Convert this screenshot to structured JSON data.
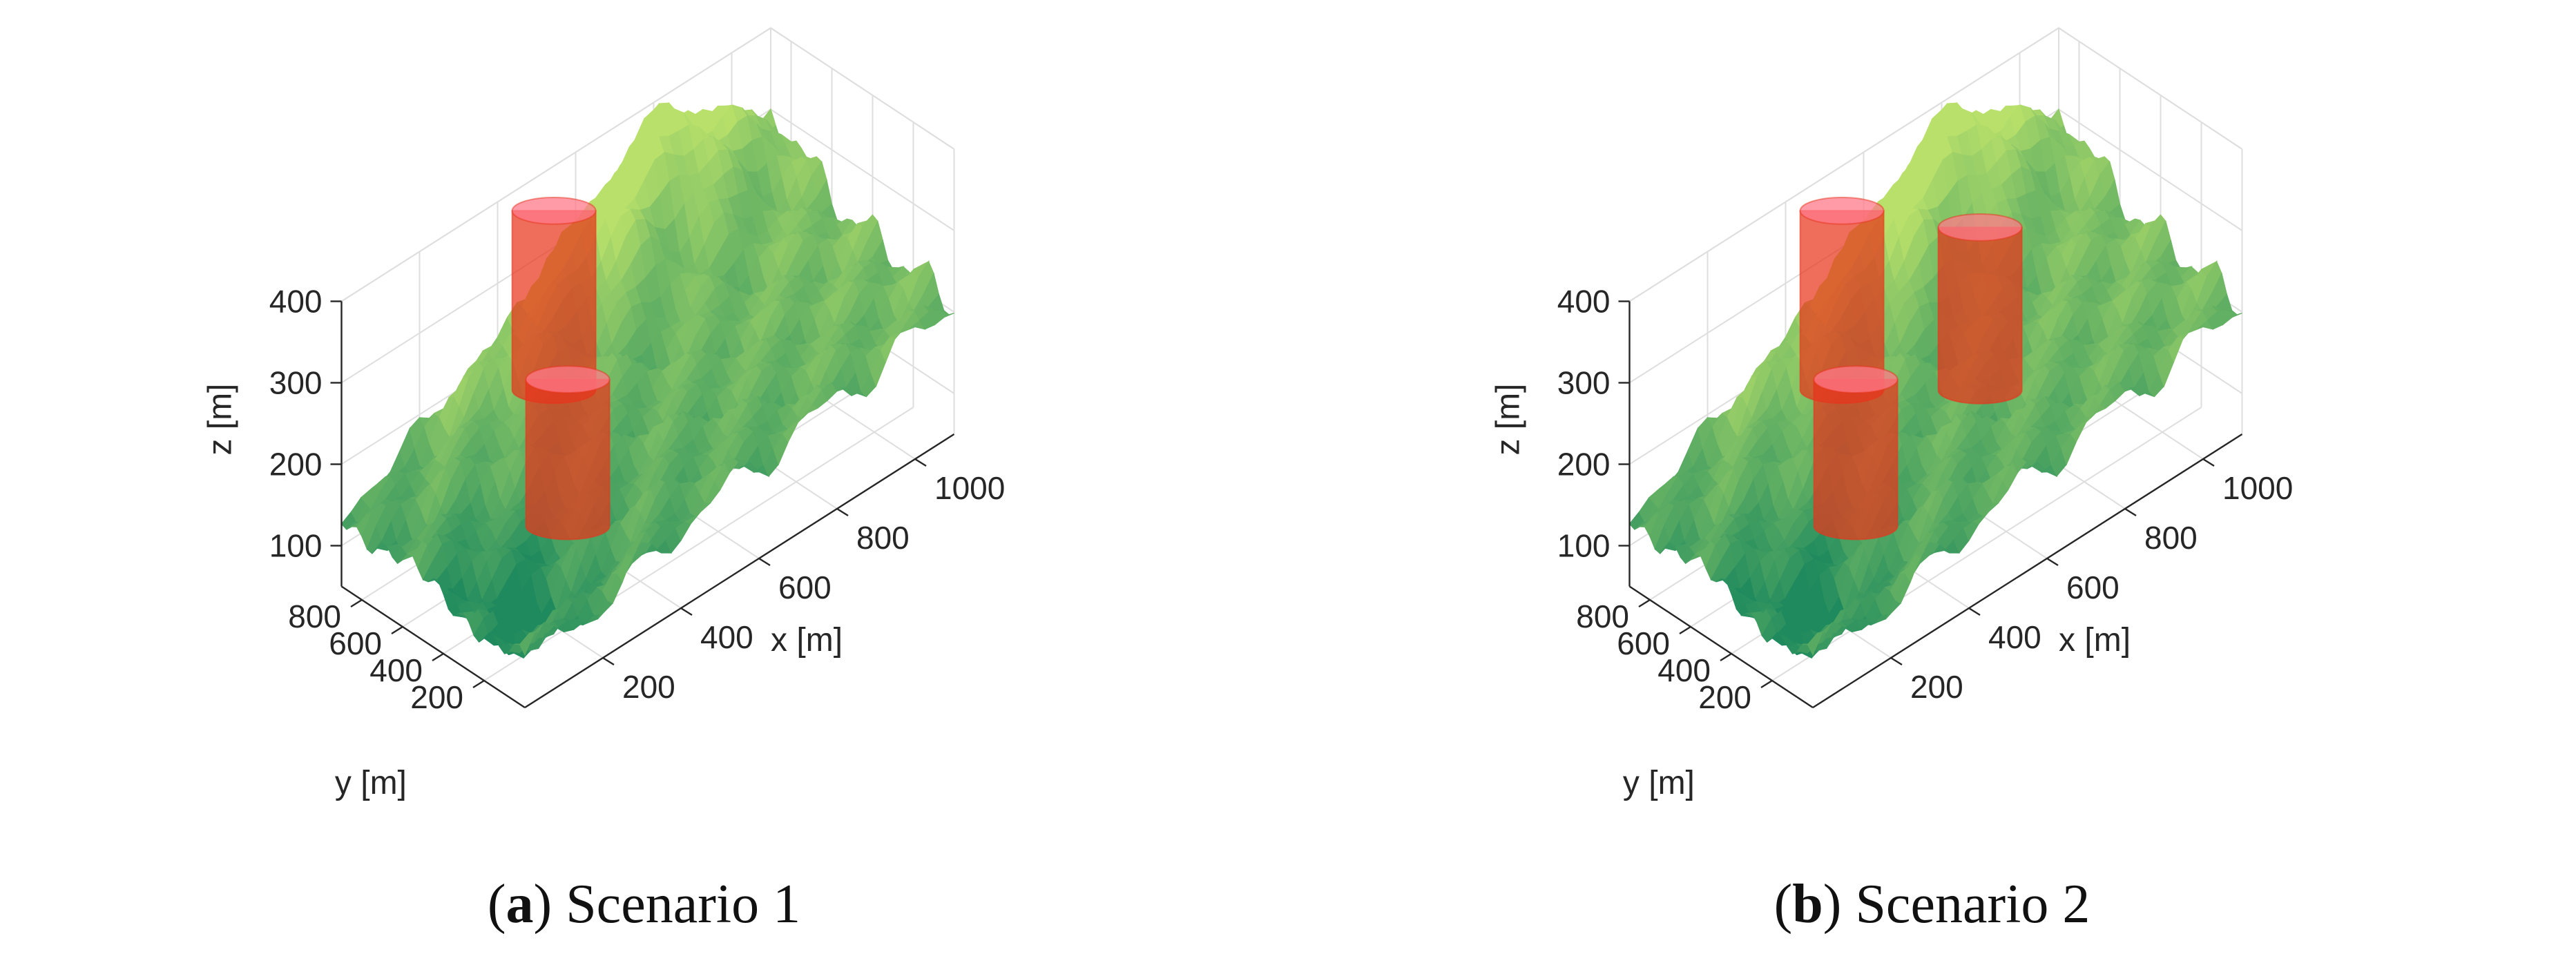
{
  "colors": {
    "terrain_low": "#1f8a5e",
    "terrain_high": "#b8e06a",
    "obstacle": "#e8341c",
    "obstacle_top": "#ff7a8a",
    "axis": "#262626",
    "grid": "#dedede"
  },
  "panels": [
    {
      "caption_letter": "a",
      "caption_text": "Scenario 1",
      "chart_data": {
        "type": "surface3d",
        "xlabel": "x [m]",
        "ylabel": "y [m]",
        "zlabel": "z [m]",
        "xticks": [
          200,
          400,
          600,
          800,
          1000
        ],
        "yticks": [
          200,
          400,
          600,
          800
        ],
        "zticks": [
          100,
          200,
          300,
          400
        ],
        "xlim": [
          0,
          1100
        ],
        "ylim": [
          0,
          900
        ],
        "zlim": [
          50,
          400
        ],
        "grid": true,
        "obstacles": [
          {
            "shape": "cylinder",
            "x": 440,
            "y": 700,
            "z_bottom": 190,
            "z_top": 410
          },
          {
            "shape": "cylinder",
            "x": 350,
            "y": 460,
            "z_bottom": 90,
            "z_top": 270
          }
        ]
      }
    },
    {
      "caption_letter": "b",
      "caption_text": "Scenario 2",
      "chart_data": {
        "type": "surface3d",
        "xlabel": "x [m]",
        "ylabel": "y [m]",
        "zlabel": "z [m]",
        "xticks": [
          200,
          400,
          600,
          800,
          1000
        ],
        "yticks": [
          200,
          400,
          600,
          800
        ],
        "zticks": [
          100,
          200,
          300,
          400
        ],
        "xlim": [
          0,
          1100
        ],
        "ylim": [
          0,
          900
        ],
        "zlim": [
          50,
          400
        ],
        "grid": true,
        "obstacles": [
          {
            "shape": "cylinder",
            "x": 440,
            "y": 700,
            "z_bottom": 190,
            "z_top": 410
          },
          {
            "shape": "cylinder",
            "x": 350,
            "y": 460,
            "z_bottom": 90,
            "z_top": 270
          },
          {
            "shape": "cylinder",
            "x": 700,
            "y": 520,
            "z_bottom": 140,
            "z_top": 340
          }
        ]
      }
    }
  ]
}
